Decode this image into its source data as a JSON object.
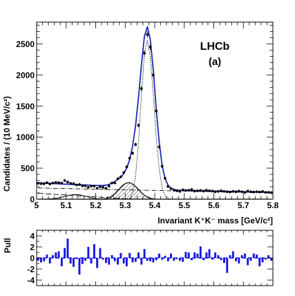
{
  "chart_data": [
    {
      "type": "line",
      "title": "LHCb",
      "subtitle": "(a)",
      "xlabel": "Invariant K⁺K⁻ mass [GeV/c²]",
      "ylabel": "Candidates / (10 MeV/c²)",
      "xlim": [
        5.0,
        5.8
      ],
      "ylim": [
        0,
        2850
      ],
      "x_ticks": [
        "5",
        "5.1",
        "5.2",
        "5.3",
        "5.4",
        "5.5",
        "5.6",
        "5.7",
        "5.8"
      ],
      "y_ticks": [
        "0",
        "500",
        "1000",
        "1500",
        "2000",
        "2500"
      ],
      "grid": false,
      "legend": "none",
      "x": [
        5.005,
        5.015,
        5.025,
        5.035,
        5.045,
        5.055,
        5.065,
        5.075,
        5.085,
        5.095,
        5.105,
        5.115,
        5.125,
        5.135,
        5.145,
        5.155,
        5.165,
        5.175,
        5.185,
        5.195,
        5.205,
        5.215,
        5.225,
        5.235,
        5.245,
        5.255,
        5.265,
        5.275,
        5.285,
        5.295,
        5.305,
        5.315,
        5.325,
        5.335,
        5.345,
        5.355,
        5.365,
        5.375,
        5.385,
        5.395,
        5.405,
        5.415,
        5.425,
        5.435,
        5.445,
        5.455,
        5.465,
        5.475,
        5.485,
        5.495,
        5.505,
        5.515,
        5.525,
        5.535,
        5.545,
        5.555,
        5.565,
        5.575,
        5.585,
        5.595,
        5.605,
        5.615,
        5.625,
        5.635,
        5.645,
        5.655,
        5.665,
        5.675,
        5.685,
        5.695,
        5.705,
        5.715,
        5.725,
        5.735,
        5.745,
        5.755,
        5.765,
        5.775,
        5.785,
        5.795
      ],
      "series": [
        {
          "kind": "data points",
          "values": [
            255,
            250,
            248,
            265,
            245,
            260,
            270,
            265,
            260,
            300,
            275,
            255,
            250,
            230,
            235,
            215,
            215,
            190,
            210,
            210,
            175,
            200,
            190,
            175,
            210,
            260,
            260,
            330,
            360,
            430,
            520,
            660,
            740,
            880,
            1190,
            1780,
            2350,
            2650,
            2450,
            2000,
            1420,
            840,
            530,
            335,
            205,
            170,
            145,
            135,
            125,
            150,
            140,
            145,
            155,
            130,
            135,
            140,
            130,
            145,
            135,
            130,
            120,
            125,
            135,
            125,
            120,
            115,
            125,
            120,
            130,
            120,
            110,
            130,
            120,
            115,
            120,
            115,
            125,
            110,
            110,
            105
          ]
        },
        {
          "kind": "total fit",
          "values": [
            265,
            262,
            259,
            257,
            254,
            252,
            249,
            247,
            245,
            242,
            240,
            238,
            236,
            234,
            232,
            230,
            228,
            226,
            224,
            222,
            220,
            219,
            220,
            226,
            238,
            258,
            285,
            318,
            355,
            410,
            500,
            640,
            850,
            1180,
            1640,
            2170,
            2620,
            2780,
            2560,
            2080,
            1460,
            920,
            540,
            330,
            225,
            178,
            157,
            147,
            142,
            140,
            139,
            138,
            137,
            136,
            135,
            134,
            133,
            132,
            131,
            130,
            129,
            128,
            127,
            126,
            125,
            124,
            123,
            122,
            121,
            120,
            119,
            118,
            117,
            116,
            115,
            114,
            113,
            112,
            111,
            110
          ]
        },
        {
          "kind": "narrow signal component",
          "values": [
            0,
            0,
            0,
            0,
            0,
            0,
            0,
            0,
            0,
            0,
            0,
            0,
            0,
            0,
            0,
            0,
            0,
            0,
            0,
            0,
            0,
            0,
            0,
            0,
            0,
            0,
            0,
            0,
            0,
            0,
            0,
            15,
            90,
            370,
            920,
            1690,
            2330,
            2560,
            2290,
            1680,
            1000,
            480,
            180,
            55,
            12,
            0,
            0,
            0,
            0,
            0,
            0,
            0,
            0,
            0,
            0,
            0,
            0,
            0,
            0,
            0,
            0,
            0,
            0,
            0,
            0,
            0,
            0,
            0,
            0,
            0,
            0,
            0,
            0,
            0,
            0,
            0,
            0,
            0,
            0,
            0
          ]
        },
        {
          "kind": "hatched peaking component",
          "values": [
            0,
            0,
            0,
            0,
            0,
            0,
            0,
            0,
            0,
            0,
            0,
            0,
            0,
            0,
            0,
            0,
            0,
            0,
            0,
            0,
            0,
            0,
            3,
            10,
            25,
            50,
            90,
            140,
            190,
            235,
            260,
            265,
            245,
            205,
            155,
            105,
            65,
            35,
            15,
            5,
            0,
            0,
            0,
            0,
            0,
            0,
            0,
            0,
            0,
            0,
            0,
            0,
            0,
            0,
            0,
            0,
            0,
            0,
            0,
            0,
            0,
            0,
            0,
            0,
            0,
            0,
            0,
            0,
            0,
            0,
            0,
            0,
            0,
            0,
            0,
            0,
            0,
            0,
            0,
            0
          ]
        },
        {
          "kind": "dash-dot flat component",
          "values": [
            180,
            179,
            178,
            177,
            176,
            175,
            174,
            173,
            172,
            171,
            170,
            169,
            168,
            167,
            166,
            165,
            164,
            163,
            162,
            161,
            160,
            159,
            158,
            157,
            156,
            155,
            154,
            153,
            152,
            151,
            150,
            149,
            148,
            147,
            146,
            145,
            144,
            143,
            142,
            141,
            140,
            139,
            138,
            137,
            136,
            135,
            134,
            133,
            132,
            131,
            130,
            129,
            128,
            127,
            126,
            125,
            124,
            123,
            122,
            121,
            120,
            119,
            118,
            117,
            116,
            115,
            114,
            113,
            112,
            111,
            110,
            109,
            108,
            107,
            106,
            105,
            104,
            103,
            102,
            101
          ]
        },
        {
          "kind": "long-dashed component",
          "values": [
            95,
            92,
            89,
            86,
            83,
            80,
            77,
            74,
            71,
            68,
            65,
            62,
            59,
            56,
            53,
            50,
            47,
            44,
            41,
            38,
            35,
            32,
            29,
            26,
            23,
            20,
            17,
            14,
            11,
            8,
            5,
            2,
            0,
            0,
            0,
            0,
            0,
            0,
            0,
            0,
            0,
            0,
            0,
            0,
            0,
            0,
            0,
            0,
            0,
            0,
            0,
            0,
            0,
            0,
            0,
            0,
            0,
            0,
            0,
            0,
            0,
            0,
            0,
            0,
            0,
            0,
            0,
            0,
            0,
            0,
            0,
            0,
            0,
            0,
            0,
            0,
            0,
            0,
            0,
            0
          ]
        },
        {
          "kind": "solid low-mass component",
          "values": [
            0,
            0,
            0,
            2,
            4,
            8,
            14,
            22,
            32,
            44,
            56,
            66,
            72,
            74,
            70,
            60,
            48,
            36,
            24,
            14,
            7,
            3,
            1,
            0,
            0,
            0,
            0,
            0,
            0,
            0,
            0,
            0,
            0,
            0,
            0,
            0,
            0,
            0,
            0,
            0,
            0,
            0,
            0,
            0,
            0,
            0,
            0,
            0,
            0,
            0,
            0,
            0,
            0,
            0,
            0,
            0,
            0,
            0,
            0,
            0,
            0,
            0,
            0,
            0,
            0,
            0,
            0,
            0,
            0,
            0,
            0,
            0,
            0,
            0,
            0,
            0,
            0,
            0,
            0,
            0
          ]
        }
      ],
      "colors": {
        "data": "#000000",
        "fit": "#1f2ab4",
        "components": "#000000",
        "pull": "#1515e0"
      }
    },
    {
      "type": "bar",
      "ylabel": "Pull",
      "xlim": [
        5.0,
        5.8
      ],
      "ylim": [
        -5,
        5
      ],
      "y_ticks": [
        "4",
        "2",
        "0",
        "-2",
        "-4"
      ],
      "grid": false,
      "x": [
        5.005,
        5.015,
        5.025,
        5.035,
        5.045,
        5.055,
        5.065,
        5.075,
        5.085,
        5.095,
        5.105,
        5.115,
        5.125,
        5.135,
        5.145,
        5.155,
        5.165,
        5.175,
        5.185,
        5.195,
        5.205,
        5.215,
        5.225,
        5.235,
        5.245,
        5.255,
        5.265,
        5.275,
        5.285,
        5.295,
        5.305,
        5.315,
        5.325,
        5.335,
        5.345,
        5.355,
        5.365,
        5.375,
        5.385,
        5.395,
        5.405,
        5.415,
        5.425,
        5.435,
        5.445,
        5.455,
        5.465,
        5.475,
        5.485,
        5.495,
        5.505,
        5.515,
        5.525,
        5.535,
        5.545,
        5.555,
        5.565,
        5.575,
        5.585,
        5.595,
        5.605,
        5.615,
        5.625,
        5.635,
        5.645,
        5.655,
        5.665,
        5.675,
        5.685,
        5.695,
        5.705,
        5.715,
        5.725,
        5.735,
        5.745,
        5.755,
        5.765,
        5.775,
        5.785,
        5.795
      ],
      "values": [
        -0.5,
        -0.8,
        -0.6,
        0.6,
        -1.0,
        0.5,
        1.0,
        1.2,
        -1.5,
        1.8,
        3.5,
        -1.0,
        -1.6,
        -0.2,
        -3.0,
        -1.1,
        -0.5,
        2.0,
        -1.0,
        2.5,
        -1.8,
        1.8,
        -0.3,
        -0.9,
        -1.2,
        0.5,
        -0.6,
        -1.2,
        0.9,
        -1.0,
        -1.5,
        0.9,
        -0.8,
        -0.7,
        1.0,
        -1.2,
        1.6,
        -0.5,
        -0.6,
        -0.8,
        -0.4,
        0.8,
        -0.3,
        0.4,
        -0.6,
        0.8,
        -0.5,
        -0.2,
        -0.5,
        -0.7,
        1.1,
        1.0,
        -0.4,
        1.0,
        0.8,
        2.1,
        -0.4,
        1.0,
        1.6,
        -0.3,
        1.0,
        0.5,
        -0.4,
        -0.9,
        -2.7,
        0.5,
        1.2,
        -0.6,
        -1.0,
        0.5,
        0.8,
        -1.3,
        -0.5,
        0.8,
        0.6,
        -1.5,
        -0.8,
        -0.3,
        0.5,
        -0.5
      ]
    }
  ]
}
